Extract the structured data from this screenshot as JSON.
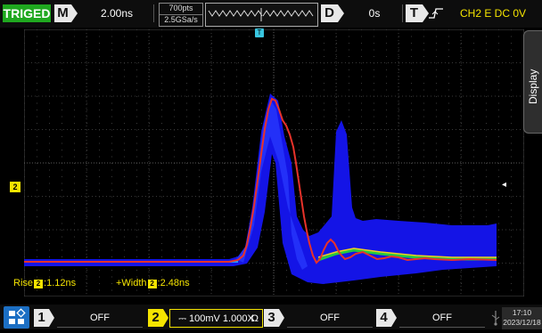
{
  "top": {
    "trigger_status": "TRIGED",
    "horizontal_key": "M",
    "timebase": "2.00ns",
    "memory_points": "700pts",
    "sample_rate": "2.5GSa/s",
    "delay_key": "D",
    "delay": "0s",
    "trigger_key": "T",
    "trigger_source": "CH2 E DC 0V"
  },
  "side": {
    "display_tab": "Display",
    "ch2_marker": "2",
    "trigger_position_marker": "T",
    "trigger_level_marker": "◂"
  },
  "measurements": {
    "rise_prefix": "Rise",
    "rise_channel": "2",
    "rise_value": ":1.12ns",
    "width_prefix": "+Width",
    "width_channel": "2",
    "width_value": ":2.48ns"
  },
  "bottom": {
    "ch1_key": "1",
    "ch1_status": "OFF",
    "ch2_key": "2",
    "ch2_status": "⎓ 100mV 1.000X",
    "ch2_impedance": "Ω",
    "ch3_key": "3",
    "ch3_status": "OFF",
    "ch4_key": "4",
    "ch4_status": "OFF",
    "time": "17:10",
    "date": "2023/12/18"
  },
  "colors": {
    "trigger_green": "#1fa81f",
    "channel2_yellow": "#f5e400",
    "persistence_blue": "#1414e6",
    "waveform_red": "#e8322a",
    "home_blue": "#1c6fc4"
  }
}
